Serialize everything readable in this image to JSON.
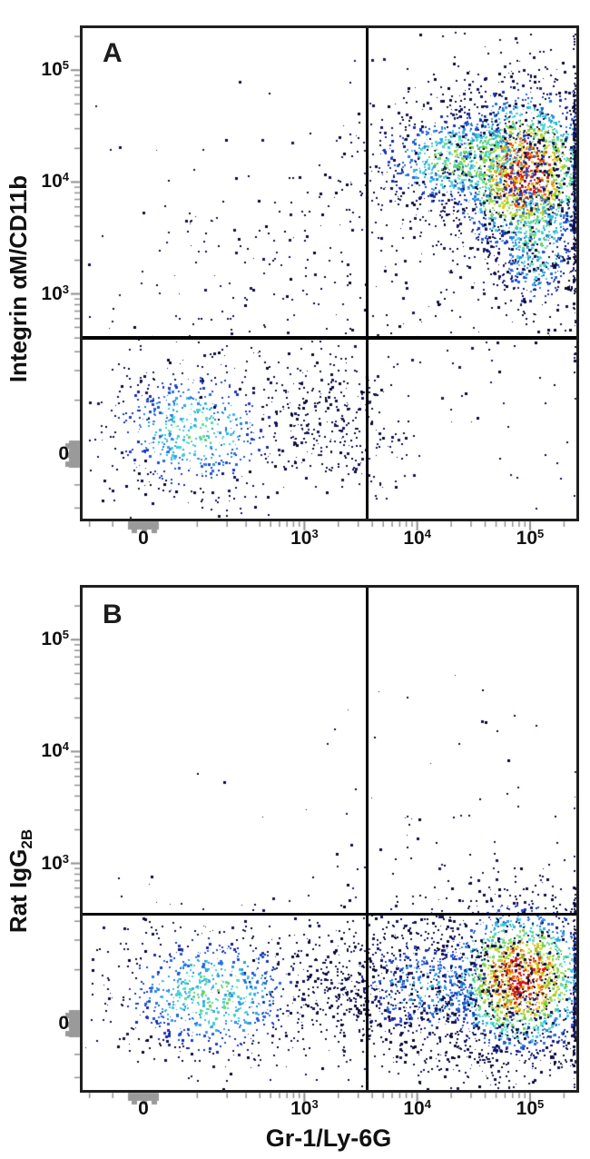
{
  "figure": {
    "x_axis_title": "Gr-1/Ly-6G",
    "background": "#ffffff",
    "colors": {
      "frame": "#1f1f1f",
      "quadrant_line": "#000000",
      "tick": "#8f8f8f",
      "compressed_marker": "#9a9a9a",
      "text": "#111111",
      "dot_sparse_palette": [
        "#0a0a3e",
        "#101050",
        "#070732",
        "#17175e"
      ],
      "density_palette": [
        "#07073a",
        "#10107a",
        "#1e3cc8",
        "#2a7de0",
        "#38c8e8",
        "#55e0c0",
        "#6fce44",
        "#a6dc30",
        "#e6df1e",
        "#f5a714",
        "#ef5410",
        "#d3150f"
      ]
    },
    "minor_tick_values": [
      -100,
      -50,
      100,
      200,
      300,
      400,
      500,
      600,
      700,
      800,
      900,
      2000,
      3000,
      4000,
      5000,
      6000,
      7000,
      8000,
      9000,
      20000,
      30000,
      40000,
      50000,
      60000,
      70000,
      80000,
      90000,
      200000
    ]
  },
  "chart_data": [
    {
      "type": "scatter",
      "subtype": "flow-cytometry-pseudocolor-density",
      "panel_label": "A",
      "xlabel": "Gr-1/Ly-6G",
      "ylabel_main": "Integrin αM/CD11b",
      "ylabel_sub": "",
      "x_scale": "biexponential",
      "y_scale": "biexponential",
      "x_range": [
        -150,
        260000
      ],
      "y_range": [
        -140,
        250000
      ],
      "grid": false,
      "legend": "none",
      "x_ticks": [
        {
          "value": 0,
          "base": "0",
          "exp": ""
        },
        {
          "value": 1000,
          "base": "10",
          "exp": "3"
        },
        {
          "value": 10000,
          "base": "10",
          "exp": "4"
        },
        {
          "value": 100000,
          "base": "10",
          "exp": "5"
        }
      ],
      "y_ticks": [
        {
          "value": 100000,
          "base": "10",
          "exp": "5"
        },
        {
          "value": 10000,
          "base": "10",
          "exp": "4"
        },
        {
          "value": 1000,
          "base": "10",
          "exp": "3"
        },
        {
          "value": 0,
          "base": "0",
          "exp": ""
        }
      ],
      "quadrant_gates": {
        "x_value": 3600,
        "y_value": 400
      },
      "populations": [
        {
          "name": "double-negative-cluster",
          "n": 650,
          "x_center": 90,
          "y_center": 40,
          "x_spread_dec": 1.0,
          "y_spread_dec": 0.75,
          "density": 0.42
        },
        {
          "name": "bridge-scatter",
          "n": 280,
          "x_center": 2000,
          "y_center": 60,
          "x_spread_dec": 0.7,
          "y_spread_dec": 0.75,
          "density": 0.08
        },
        {
          "name": "double-positive-core",
          "n": 1700,
          "x_center": 87000,
          "y_center": 12000,
          "x_spread_dec": 0.75,
          "y_spread_dec": 0.9,
          "density": 1.0
        },
        {
          "name": "double-positive-shoulder",
          "n": 800,
          "x_center": 26000,
          "y_center": 16000,
          "x_spread_dec": 1.0,
          "y_spread_dec": 0.55,
          "density": 0.55
        },
        {
          "name": "double-positive-lower-tail",
          "n": 450,
          "x_center": 110000,
          "y_center": 3000,
          "x_spread_dec": 0.45,
          "y_spread_dec": 0.8,
          "density": 0.5
        },
        {
          "name": "double-positive-halo",
          "n": 600,
          "x_center": 70000,
          "y_center": 10000,
          "x_spread_dec": 1.6,
          "y_spread_dec": 1.55,
          "density": 0.12
        },
        {
          "name": "diffuse-mid-scatter",
          "n": 300,
          "x_center": 900,
          "y_center": 1500,
          "x_spread_dec": 2.2,
          "y_spread_dec": 1.5,
          "density": 0
        },
        {
          "name": "lower-right-sparse",
          "n": 28,
          "x_center": 40000,
          "y_center": 60,
          "x_spread_dec": 1.1,
          "y_spread_dec": 1.2,
          "density": 0
        }
      ]
    },
    {
      "type": "scatter",
      "subtype": "flow-cytometry-pseudocolor-density",
      "panel_label": "B",
      "xlabel": "Gr-1/Ly-6G",
      "ylabel_main": "Rat IgG",
      "ylabel_sub": "2B",
      "x_scale": "biexponential",
      "y_scale": "biexponential",
      "x_range": [
        -150,
        260000
      ],
      "y_range": [
        -140,
        250000
      ],
      "grid": false,
      "legend": "none",
      "x_ticks": [
        {
          "value": 0,
          "base": "0",
          "exp": ""
        },
        {
          "value": 1000,
          "base": "10",
          "exp": "3"
        },
        {
          "value": 10000,
          "base": "10",
          "exp": "4"
        },
        {
          "value": 100000,
          "base": "10",
          "exp": "5"
        }
      ],
      "y_ticks": [
        {
          "value": 100000,
          "base": "10",
          "exp": "5"
        },
        {
          "value": 10000,
          "base": "10",
          "exp": "4"
        },
        {
          "value": 1000,
          "base": "10",
          "exp": "3"
        },
        {
          "value": 0,
          "base": "0",
          "exp": ""
        }
      ],
      "quadrant_gates": {
        "x_value": 3600,
        "y_value": 350
      },
      "populations": [
        {
          "name": "double-negative-cluster",
          "n": 850,
          "x_center": 140,
          "y_center": 50,
          "x_spread_dec": 1.1,
          "y_spread_dec": 0.72,
          "density": 0.45
        },
        {
          "name": "bridge-scatter",
          "n": 350,
          "x_center": 3000,
          "y_center": 60,
          "x_spread_dec": 0.9,
          "y_spread_dec": 0.7,
          "density": 0.1
        },
        {
          "name": "gr1-positive-core",
          "n": 1600,
          "x_center": 80000,
          "y_center": 80,
          "x_spread_dec": 0.78,
          "y_spread_dec": 0.8,
          "density": 1.0
        },
        {
          "name": "gr1-positive-left-band",
          "n": 600,
          "x_center": 12000,
          "y_center": 60,
          "x_spread_dec": 1.0,
          "y_spread_dec": 0.75,
          "density": 0.3
        },
        {
          "name": "gr1-positive-halo",
          "n": 650,
          "x_center": 60000,
          "y_center": 30,
          "x_spread_dec": 1.5,
          "y_spread_dec": 1.3,
          "density": 0.12
        },
        {
          "name": "sparse-upper",
          "n": 45,
          "x_center": 30000,
          "y_center": 3000,
          "x_spread_dec": 1.8,
          "y_spread_dec": 1.2,
          "density": 0
        },
        {
          "name": "sparse-far",
          "n": 18,
          "x_center": 2000,
          "y_center": 2000,
          "x_spread_dec": 1.6,
          "y_spread_dec": 1.4,
          "density": 0
        }
      ]
    }
  ]
}
